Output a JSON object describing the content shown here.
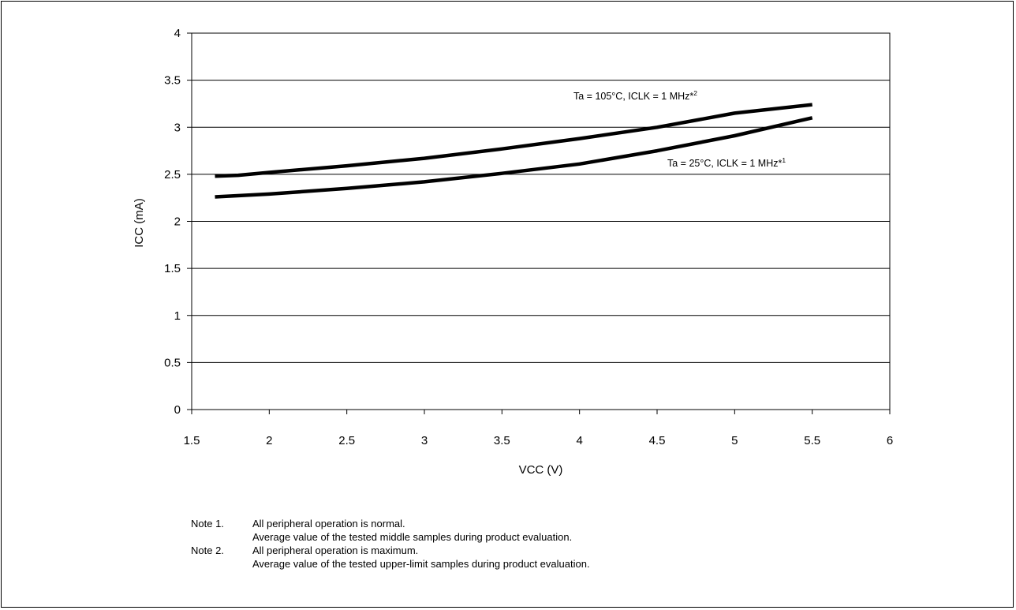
{
  "chart_data": {
    "type": "line",
    "xlabel": "VCC (V)",
    "ylabel": "ICC (mA)",
    "xlim": [
      1.5,
      6
    ],
    "ylim": [
      0,
      4
    ],
    "xticks": [
      "1.5",
      "2",
      "2.5",
      "3",
      "3.5",
      "4",
      "4.5",
      "5",
      "5.5",
      "6"
    ],
    "yticks": [
      "0",
      "0.5",
      "1",
      "1.5",
      "2",
      "2.5",
      "3",
      "3.5",
      "4"
    ],
    "grid": "horizontal",
    "series": [
      {
        "name": "Ta = 105°C, ICLK = 1 MHz*2",
        "label_main": "Ta = 105°C, ICLK = 1 MHz*",
        "label_sup": "2",
        "x": [
          1.65,
          1.8,
          2.0,
          2.5,
          3.0,
          3.5,
          4.0,
          4.5,
          5.0,
          5.5
        ],
        "y": [
          2.48,
          2.49,
          2.52,
          2.59,
          2.67,
          2.77,
          2.88,
          3.0,
          3.15,
          3.24
        ]
      },
      {
        "name": "Ta = 25°C, ICLK = 1 MHz*1",
        "label_main": "Ta = 25°C, ICLK = 1 MHz*",
        "label_sup": "1",
        "x": [
          1.65,
          2.0,
          2.5,
          3.0,
          3.5,
          4.0,
          4.5,
          5.0,
          5.5
        ],
        "y": [
          2.26,
          2.29,
          2.35,
          2.42,
          2.51,
          2.61,
          2.75,
          2.91,
          3.1
        ]
      }
    ]
  },
  "notes": [
    {
      "tag": "Note 1.",
      "lines": [
        "All peripheral operation is normal.",
        "Average value of the tested middle samples during product evaluation."
      ]
    },
    {
      "tag": "Note 2.",
      "lines": [
        "All peripheral operation is maximum.",
        "Average value of the tested upper-limit samples during product evaluation."
      ]
    }
  ]
}
